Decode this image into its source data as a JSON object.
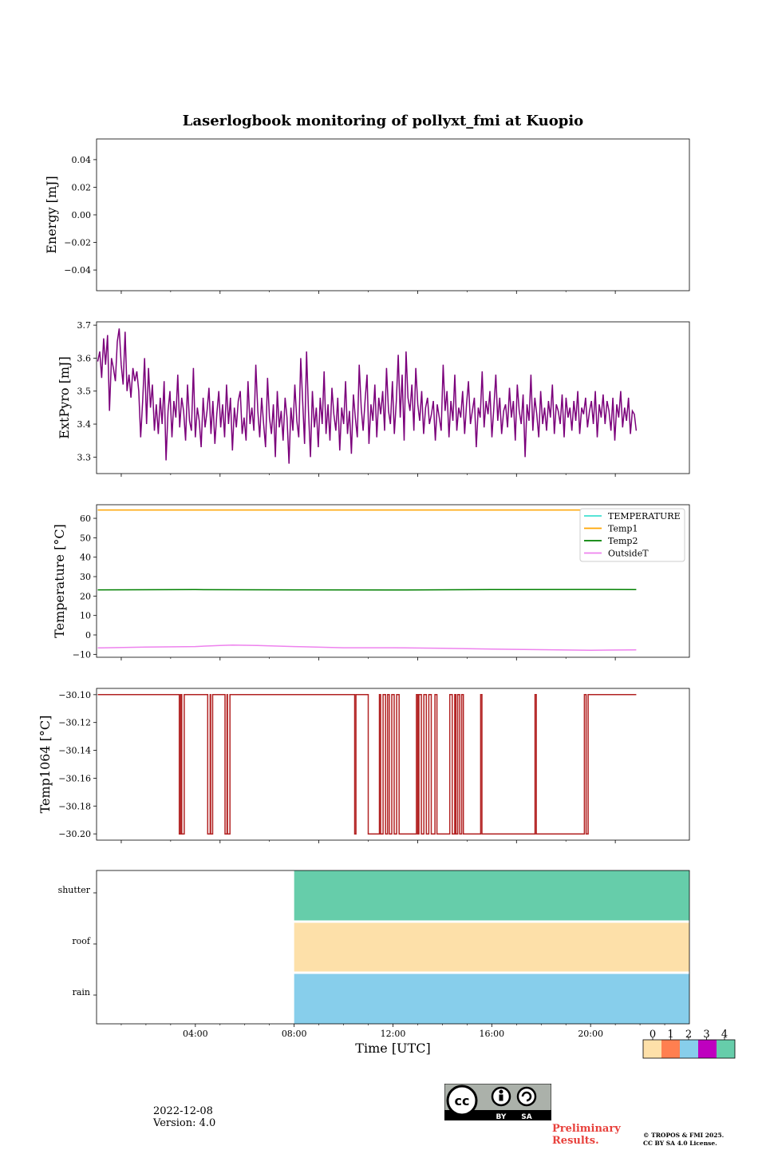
{
  "title": "Laserlogbook monitoring of pollyxt_fmi at Kuopio",
  "footer": {
    "date": "2022-12-08",
    "version": "Version: 4.0",
    "preliminary": [
      "Preliminary",
      "Results."
    ],
    "copyright": [
      "© TROPOS & FMI 2025.",
      "CC BY SA 4.0 License."
    ],
    "license_badge": "CC BY SA"
  },
  "colors": {
    "extpyro": "#7b007b",
    "TEMPERATURE": "#40e0d0",
    "Temp1": "#ffa500",
    "Temp2": "#008000",
    "OutsideT": "#ee82ee",
    "temp1064": "#b22222",
    "status_colorbar": [
      "#fde0a9",
      "#ff7f50",
      "#87ceeb",
      "#bf00bf",
      "#66cdaa"
    ]
  },
  "chart_data": [
    {
      "type": "line",
      "name": "energy",
      "ylabel": "Energy [mJ]",
      "ylim": [
        -0.055,
        0.055
      ],
      "yticks": [
        0.04,
        0.02,
        0.0,
        -0.02,
        -0.04
      ],
      "ytick_labels": [
        "0.04",
        "0.02",
        "0.00",
        "−0.02",
        "−0.04"
      ],
      "series": []
    },
    {
      "type": "line",
      "name": "extpyro",
      "ylabel": "ExtPyro [mJ]",
      "ylim": [
        3.25,
        3.71
      ],
      "yticks": [
        3.3,
        3.4,
        3.5,
        3.6,
        3.7
      ],
      "ytick_labels": [
        "3.3",
        "3.4",
        "3.5",
        "3.6",
        "3.7"
      ],
      "series": [
        {
          "name": "ExtPyro",
          "x_start_hour": 0.05,
          "x_end_hour": 21.85,
          "values": [
            3.59,
            3.62,
            3.54,
            3.66,
            3.58,
            3.67,
            3.44,
            3.6,
            3.57,
            3.53,
            3.65,
            3.69,
            3.58,
            3.52,
            3.68,
            3.5,
            3.55,
            3.48,
            3.57,
            3.53,
            3.56,
            3.5,
            3.36,
            3.47,
            3.6,
            3.4,
            3.57,
            3.45,
            3.52,
            3.38,
            3.46,
            3.37,
            3.48,
            3.4,
            3.53,
            3.29,
            3.44,
            3.5,
            3.36,
            3.47,
            3.42,
            3.55,
            3.39,
            3.48,
            3.44,
            3.35,
            3.52,
            3.41,
            3.38,
            3.57,
            3.36,
            3.45,
            3.41,
            3.33,
            3.48,
            3.39,
            3.44,
            3.51,
            3.37,
            3.47,
            3.34,
            3.43,
            3.5,
            3.39,
            3.46,
            3.36,
            3.52,
            3.4,
            3.48,
            3.32,
            3.45,
            3.39,
            3.47,
            3.5,
            3.37,
            3.42,
            3.35,
            3.53,
            3.4,
            3.45,
            3.38,
            3.58,
            3.44,
            3.36,
            3.48,
            3.4,
            3.33,
            3.54,
            3.42,
            3.37,
            3.46,
            3.3,
            3.5,
            3.39,
            3.44,
            3.35,
            3.48,
            3.42,
            3.28,
            3.45,
            3.38,
            3.52,
            3.41,
            3.36,
            3.6,
            3.47,
            3.34,
            3.62,
            3.44,
            3.3,
            3.5,
            3.39,
            3.45,
            3.33,
            3.48,
            3.4,
            3.56,
            3.37,
            3.46,
            3.35,
            3.51,
            3.43,
            3.38,
            3.48,
            3.32,
            3.45,
            3.4,
            3.53,
            3.37,
            3.44,
            3.31,
            3.49,
            3.42,
            3.36,
            3.58,
            3.45,
            3.38,
            3.47,
            3.55,
            3.34,
            3.46,
            3.41,
            3.52,
            3.36,
            3.48,
            3.43,
            3.5,
            3.38,
            3.57,
            3.44,
            3.4,
            3.53,
            3.37,
            3.47,
            3.61,
            3.42,
            3.55,
            3.35,
            3.62,
            3.48,
            3.44,
            3.52,
            3.38,
            3.57,
            3.46,
            3.41,
            3.5,
            3.37,
            3.45,
            3.48,
            3.4,
            3.43,
            3.47,
            3.35,
            3.46,
            3.42,
            3.38,
            3.58,
            3.44,
            3.5,
            3.36,
            3.47,
            3.41,
            3.55,
            3.38,
            3.45,
            3.42,
            3.5,
            3.37,
            3.46,
            3.53,
            3.4,
            3.44,
            3.48,
            3.33,
            3.45,
            3.42,
            3.56,
            3.39,
            3.47,
            3.43,
            3.5,
            3.36,
            3.45,
            3.55,
            3.41,
            3.48,
            3.37,
            3.44,
            3.46,
            3.39,
            3.51,
            3.42,
            3.47,
            3.35,
            3.52,
            3.44,
            3.4,
            3.49,
            3.3,
            3.46,
            3.41,
            3.55,
            3.38,
            3.48,
            3.43,
            3.36,
            3.5,
            3.4,
            3.45,
            3.38,
            3.47,
            3.42,
            3.52,
            3.37,
            3.46,
            3.44,
            3.4,
            3.49,
            3.36,
            3.48,
            3.42,
            3.45,
            3.38,
            3.47,
            3.41,
            3.5,
            3.37,
            3.45,
            3.43,
            3.48,
            3.39,
            3.44,
            3.47,
            3.4,
            3.5,
            3.36,
            3.46,
            3.42,
            3.49,
            3.4,
            3.47,
            3.44,
            3.38,
            3.48,
            3.35,
            3.46,
            3.42,
            3.5,
            3.39,
            3.45,
            3.41,
            3.48,
            3.37,
            3.44,
            3.43,
            3.38
          ]
        }
      ]
    },
    {
      "type": "line",
      "name": "temperature",
      "ylabel": "Temperature [°C]",
      "ylim": [
        -11.5,
        67
      ],
      "yticks": [
        60,
        50,
        40,
        30,
        20,
        10,
        0,
        -10
      ],
      "ytick_labels": [
        "60",
        "50",
        "40",
        "30",
        "20",
        "10",
        "0",
        "−10"
      ],
      "legend": [
        "TEMPERATURE",
        "Temp1",
        "Temp2",
        "OutsideT"
      ],
      "legend_position": "top-right",
      "series": [
        {
          "name": "TEMPERATURE",
          "points": []
        },
        {
          "name": "Temp1",
          "points": [
            [
              0.05,
              64.3
            ],
            [
              21.85,
              64.3
            ]
          ]
        },
        {
          "name": "Temp2",
          "points": [
            [
              0.05,
              23.2
            ],
            [
              4.0,
              23.3
            ],
            [
              8.0,
              23.2
            ],
            [
              12.0,
              23.1
            ],
            [
              16.0,
              23.3
            ],
            [
              20.0,
              23.4
            ],
            [
              21.85,
              23.3
            ]
          ]
        },
        {
          "name": "OutsideT",
          "points": [
            [
              0.05,
              -6.7
            ],
            [
              2.0,
              -6.3
            ],
            [
              4.0,
              -6.0
            ],
            [
              5.0,
              -5.4
            ],
            [
              5.5,
              -5.2
            ],
            [
              6.5,
              -5.4
            ],
            [
              8.0,
              -6.0
            ],
            [
              10.0,
              -6.6
            ],
            [
              12.0,
              -6.6
            ],
            [
              14.0,
              -6.9
            ],
            [
              16.0,
              -7.3
            ],
            [
              18.0,
              -7.6
            ],
            [
              20.0,
              -7.9
            ],
            [
              21.85,
              -7.7
            ]
          ]
        }
      ]
    },
    {
      "type": "line",
      "name": "temp1064",
      "ylabel": "Temp1064 [°C]",
      "ylim": [
        -30.2045,
        -30.0955
      ],
      "yticks": [
        -30.1,
        -30.12,
        -30.14,
        -30.16,
        -30.18,
        -30.2
      ],
      "ytick_labels": [
        "−30.10",
        "−30.12",
        "−30.14",
        "−30.16",
        "−30.18",
        "−30.20"
      ],
      "series": [
        {
          "name": "Temp1064",
          "points": [
            [
              0.05,
              -30.1
            ],
            [
              3.35,
              -30.1
            ],
            [
              3.35,
              -30.2
            ],
            [
              3.4,
              -30.2
            ],
            [
              3.4,
              -30.1
            ],
            [
              3.45,
              -30.1
            ],
            [
              3.45,
              -30.2
            ],
            [
              3.55,
              -30.2
            ],
            [
              3.55,
              -30.1
            ],
            [
              4.5,
              -30.1
            ],
            [
              4.5,
              -30.2
            ],
            [
              4.6,
              -30.2
            ],
            [
              4.6,
              -30.1
            ],
            [
              4.62,
              -30.1
            ],
            [
              4.62,
              -30.2
            ],
            [
              4.7,
              -30.2
            ],
            [
              4.7,
              -30.1
            ],
            [
              5.2,
              -30.1
            ],
            [
              5.2,
              -30.2
            ],
            [
              5.28,
              -30.2
            ],
            [
              5.28,
              -30.1
            ],
            [
              5.3,
              -30.1
            ],
            [
              5.3,
              -30.2
            ],
            [
              5.4,
              -30.2
            ],
            [
              5.4,
              -30.1
            ],
            [
              10.45,
              -30.1
            ],
            [
              10.45,
              -30.2
            ],
            [
              10.5,
              -30.2
            ],
            [
              10.5,
              -30.1
            ],
            [
              11.0,
              -30.1
            ],
            [
              11.0,
              -30.2
            ],
            [
              11.45,
              -30.2
            ],
            [
              11.45,
              -30.1
            ],
            [
              11.5,
              -30.1
            ],
            [
              11.5,
              -30.2
            ],
            [
              11.6,
              -30.2
            ],
            [
              11.6,
              -30.1
            ],
            [
              11.7,
              -30.1
            ],
            [
              11.7,
              -30.2
            ],
            [
              11.78,
              -30.2
            ],
            [
              11.78,
              -30.1
            ],
            [
              11.85,
              -30.1
            ],
            [
              11.85,
              -30.2
            ],
            [
              11.95,
              -30.2
            ],
            [
              11.95,
              -30.1
            ],
            [
              12.05,
              -30.1
            ],
            [
              12.05,
              -30.2
            ],
            [
              12.15,
              -30.2
            ],
            [
              12.15,
              -30.1
            ],
            [
              12.25,
              -30.1
            ],
            [
              12.25,
              -30.2
            ],
            [
              12.95,
              -30.2
            ],
            [
              12.95,
              -30.1
            ],
            [
              13.0,
              -30.1
            ],
            [
              13.0,
              -30.2
            ],
            [
              13.05,
              -30.2
            ],
            [
              13.05,
              -30.1
            ],
            [
              13.15,
              -30.1
            ],
            [
              13.15,
              -30.2
            ],
            [
              13.25,
              -30.2
            ],
            [
              13.25,
              -30.1
            ],
            [
              13.35,
              -30.1
            ],
            [
              13.35,
              -30.2
            ],
            [
              13.45,
              -30.2
            ],
            [
              13.45,
              -30.1
            ],
            [
              13.55,
              -30.1
            ],
            [
              13.55,
              -30.2
            ],
            [
              13.7,
              -30.2
            ],
            [
              13.7,
              -30.1
            ],
            [
              13.78,
              -30.1
            ],
            [
              13.78,
              -30.2
            ],
            [
              14.3,
              -30.2
            ],
            [
              14.3,
              -30.1
            ],
            [
              14.4,
              -30.1
            ],
            [
              14.4,
              -30.2
            ],
            [
              14.5,
              -30.2
            ],
            [
              14.5,
              -30.1
            ],
            [
              14.55,
              -30.1
            ],
            [
              14.55,
              -30.2
            ],
            [
              14.62,
              -30.2
            ],
            [
              14.62,
              -30.1
            ],
            [
              14.7,
              -30.1
            ],
            [
              14.7,
              -30.2
            ],
            [
              14.78,
              -30.2
            ],
            [
              14.78,
              -30.1
            ],
            [
              14.85,
              -30.1
            ],
            [
              14.85,
              -30.2
            ],
            [
              15.55,
              -30.2
            ],
            [
              15.55,
              -30.1
            ],
            [
              15.6,
              -30.1
            ],
            [
              15.6,
              -30.2
            ],
            [
              17.75,
              -30.2
            ],
            [
              17.75,
              -30.1
            ],
            [
              17.8,
              -30.1
            ],
            [
              17.8,
              -30.2
            ],
            [
              19.75,
              -30.2
            ],
            [
              19.75,
              -30.1
            ],
            [
              19.82,
              -30.1
            ],
            [
              19.82,
              -30.2
            ],
            [
              19.9,
              -30.2
            ],
            [
              19.9,
              -30.1
            ],
            [
              21.85,
              -30.1
            ]
          ]
        }
      ]
    },
    {
      "type": "heatmap",
      "name": "status",
      "xlabel": "Time [UTC]",
      "xlim_hours": [
        0,
        24
      ],
      "xticks": [
        "04:00",
        "08:00",
        "12:00",
        "16:00",
        "20:00"
      ],
      "xtick_hours": [
        4,
        8,
        12,
        16,
        20
      ],
      "rows": [
        "shutter",
        "roof",
        "rain"
      ],
      "segments": [
        {
          "row": "shutter",
          "start": 8.0,
          "end": 24.0,
          "value": 4
        },
        {
          "row": "roof",
          "start": 8.0,
          "end": 24.0,
          "value": 0
        },
        {
          "row": "rain",
          "start": 8.0,
          "end": 24.0,
          "value": 2
        }
      ],
      "colorbar": {
        "ticks": [
          "0",
          "1",
          "2",
          "3",
          "4"
        ]
      }
    }
  ]
}
